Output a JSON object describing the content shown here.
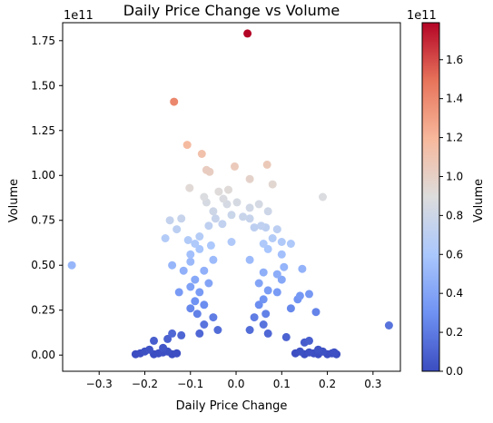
{
  "chart_data": {
    "type": "scatter",
    "title": "Daily Price Change vs Volume",
    "xlabel": "Daily Price Change",
    "ylabel": "Volume",
    "y_offset_label": "1e11",
    "xlim": [
      -0.38,
      0.36
    ],
    "ylim": [
      -0.09,
      1.85
    ],
    "xticks": [
      -0.3,
      -0.2,
      -0.1,
      0.0,
      0.1,
      0.2,
      0.3
    ],
    "xtick_labels": [
      "−0.3",
      "−0.2",
      "−0.1",
      "0.0",
      "0.1",
      "0.2",
      "0.3"
    ],
    "yticks": [
      0.0,
      0.25,
      0.5,
      0.75,
      1.0,
      1.25,
      1.5,
      1.75
    ],
    "ytick_labels": [
      "0.00",
      "0.25",
      "0.50",
      "0.75",
      "1.00",
      "1.25",
      "1.50",
      "1.75"
    ],
    "grid": false,
    "colormap": "coolwarm",
    "colorbar": {
      "label": "Volume",
      "offset_label": "1e11",
      "min": 0.0,
      "max": 1.79,
      "ticks": [
        0.0,
        0.2,
        0.4,
        0.6,
        0.8,
        1.0,
        1.2,
        1.4,
        1.6
      ],
      "tick_labels": [
        "0.0",
        "0.2",
        "0.4",
        "0.6",
        "0.8",
        "1.0",
        "1.2",
        "1.4",
        "1.6"
      ],
      "colors": [
        "#3b4cc0",
        "#6f92f3",
        "#aac7fd",
        "#dddddd",
        "#f7b89c",
        "#e7745b",
        "#b40426"
      ]
    },
    "points": [
      [
        0.025,
        1.79
      ],
      [
        -0.136,
        1.41
      ],
      [
        -0.107,
        1.17
      ],
      [
        -0.075,
        1.12
      ],
      [
        0.068,
        1.06
      ],
      [
        -0.003,
        1.05
      ],
      [
        -0.065,
        1.03
      ],
      [
        -0.058,
        1.02
      ],
      [
        0.03,
        0.98
      ],
      [
        0.08,
        0.95
      ],
      [
        -0.102,
        0.93
      ],
      [
        -0.017,
        0.92
      ],
      [
        0.19,
        0.88
      ],
      [
        -0.038,
        0.91
      ],
      [
        -0.07,
        0.88
      ],
      [
        -0.065,
        0.85
      ],
      [
        -0.028,
        0.87
      ],
      [
        0.002,
        0.85
      ],
      [
        -0.02,
        0.84
      ],
      [
        0.05,
        0.84
      ],
      [
        0.07,
        0.8
      ],
      [
        -0.05,
        0.8
      ],
      [
        0.03,
        0.82
      ],
      [
        -0.01,
        0.78
      ],
      [
        0.015,
        0.77
      ],
      [
        -0.145,
        0.75
      ],
      [
        -0.12,
        0.76
      ],
      [
        -0.045,
        0.76
      ],
      [
        -0.03,
        0.73
      ],
      [
        0.03,
        0.76
      ],
      [
        -0.06,
        0.72
      ],
      [
        0.055,
        0.72
      ],
      [
        0.065,
        0.71
      ],
      [
        -0.13,
        0.7
      ],
      [
        0.09,
        0.7
      ],
      [
        0.04,
        0.71
      ],
      [
        -0.155,
        0.65
      ],
      [
        -0.08,
        0.66
      ],
      [
        -0.105,
        0.64
      ],
      [
        0.08,
        0.65
      ],
      [
        0.1,
        0.63
      ],
      [
        -0.09,
        0.62
      ],
      [
        0.12,
        0.62
      ],
      [
        -0.055,
        0.61
      ],
      [
        -0.01,
        0.63
      ],
      [
        0.06,
        0.62
      ],
      [
        -0.08,
        0.59
      ],
      [
        0.07,
        0.59
      ],
      [
        -0.1,
        0.56
      ],
      [
        0.1,
        0.56
      ],
      [
        -0.36,
        0.5
      ],
      [
        -0.14,
        0.5
      ],
      [
        -0.1,
        0.52
      ],
      [
        -0.05,
        0.53
      ],
      [
        0.03,
        0.53
      ],
      [
        0.105,
        0.49
      ],
      [
        0.145,
        0.48
      ],
      [
        -0.115,
        0.47
      ],
      [
        0.09,
        0.45
      ],
      [
        -0.07,
        0.47
      ],
      [
        0.06,
        0.46
      ],
      [
        -0.09,
        0.42
      ],
      [
        0.1,
        0.42
      ],
      [
        -0.06,
        0.4
      ],
      [
        0.05,
        0.4
      ],
      [
        -0.1,
        0.38
      ],
      [
        -0.08,
        0.35
      ],
      [
        0.07,
        0.36
      ],
      [
        -0.125,
        0.35
      ],
      [
        0.09,
        0.35
      ],
      [
        0.14,
        0.33
      ],
      [
        0.16,
        0.34
      ],
      [
        0.135,
        0.31
      ],
      [
        -0.09,
        0.3
      ],
      [
        0.06,
        0.31
      ],
      [
        -0.07,
        0.28
      ],
      [
        0.05,
        0.28
      ],
      [
        0.12,
        0.26
      ],
      [
        -0.1,
        0.26
      ],
      [
        0.175,
        0.24
      ],
      [
        -0.085,
        0.23
      ],
      [
        0.065,
        0.23
      ],
      [
        -0.05,
        0.21
      ],
      [
        0.04,
        0.21
      ],
      [
        0.335,
        0.165
      ],
      [
        -0.07,
        0.17
      ],
      [
        0.06,
        0.17
      ],
      [
        -0.04,
        0.14
      ],
      [
        0.03,
        0.14
      ],
      [
        -0.08,
        0.12
      ],
      [
        0.07,
        0.12
      ],
      [
        -0.14,
        0.12
      ],
      [
        -0.12,
        0.11
      ],
      [
        0.11,
        0.1
      ],
      [
        0.15,
        0.07
      ],
      [
        -0.15,
        0.09
      ],
      [
        -0.18,
        0.08
      ],
      [
        0.16,
        0.08
      ],
      [
        -0.16,
        0.04
      ],
      [
        0.18,
        0.03
      ],
      [
        -0.22,
        0.005
      ],
      [
        -0.21,
        0.01
      ],
      [
        -0.2,
        0.02
      ],
      [
        -0.19,
        0.03
      ],
      [
        -0.18,
        0.005
      ],
      [
        -0.17,
        0.01
      ],
      [
        -0.16,
        0.015
      ],
      [
        -0.15,
        0.02
      ],
      [
        -0.14,
        0.005
      ],
      [
        -0.13,
        0.01
      ],
      [
        0.13,
        0.01
      ],
      [
        0.14,
        0.02
      ],
      [
        0.15,
        0.005
      ],
      [
        0.16,
        0.015
      ],
      [
        0.17,
        0.01
      ],
      [
        0.18,
        0.005
      ],
      [
        0.19,
        0.02
      ],
      [
        0.2,
        0.005
      ],
      [
        0.21,
        0.01
      ],
      [
        0.22,
        0.005
      ],
      [
        0.215,
        0.015
      ]
    ]
  }
}
